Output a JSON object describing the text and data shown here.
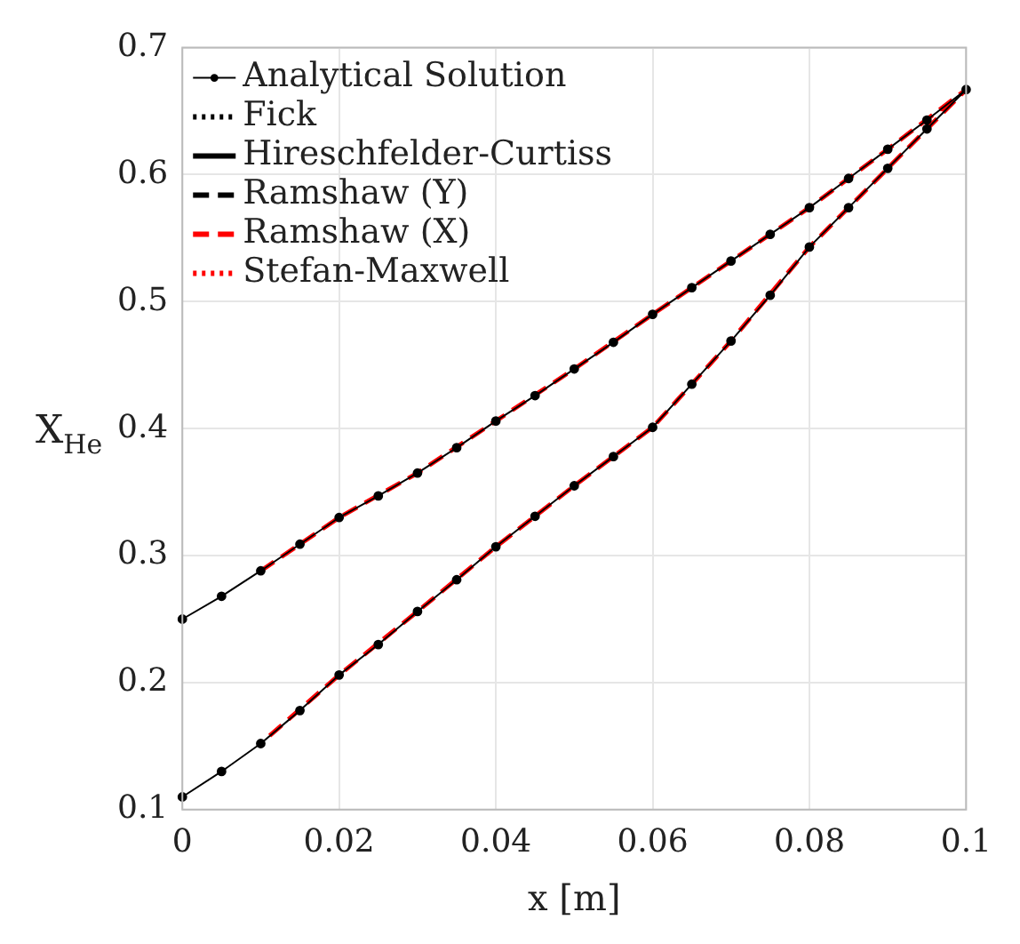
{
  "chart_data": {
    "type": "line",
    "xlabel": "x [m]",
    "ylabel": "X$_{He}$",
    "xlim": [
      0,
      0.1
    ],
    "ylim": [
      0.1,
      0.7
    ],
    "xticks": [
      0,
      0.02,
      0.04,
      0.06,
      0.08,
      0.1
    ],
    "yticks": [
      0.1,
      0.2,
      0.3,
      0.4,
      0.5,
      0.6,
      0.7
    ],
    "grid": true,
    "legend": "top left",
    "series": [
      {
        "name": "Fick",
        "color": "#000000",
        "line_style": "dotted"
      },
      {
        "name": "Hireschfelder-Curtiss",
        "color": "#000000",
        "line_style": "solid"
      },
      {
        "name": "Ramshaw (Y)",
        "color": "#000000",
        "line_style": "dashed"
      },
      {
        "name": "Ramshaw (X)",
        "color": "#ff0000",
        "line_style": "dashed",
        "x": [
          0.01,
          0.02,
          0.03,
          0.04,
          0.05,
          0.06,
          0.07,
          0.08,
          0.09,
          0.1,
          0.09,
          0.08,
          0.07,
          0.06,
          0.05,
          0.04,
          0.03,
          0.02,
          0.01
        ],
        "values": [
          0.288,
          0.33,
          0.365,
          0.406,
          0.447,
          0.49,
          0.532,
          0.574,
          0.62,
          0.667,
          0.605,
          0.543,
          0.469,
          0.401,
          0.355,
          0.307,
          0.256,
          0.206,
          0.152
        ]
      },
      {
        "name": "Stefan-Maxwell",
        "color": "#ff0000",
        "line_style": "dotted"
      },
      {
        "name": "Analytical Solution",
        "color": "#000000",
        "line_style": "solid",
        "marker": "circle",
        "x": [
          0,
          0.005,
          0.01,
          0.015,
          0.02,
          0.025,
          0.03,
          0.035,
          0.04,
          0.045,
          0.05,
          0.055,
          0.06,
          0.065,
          0.07,
          0.075,
          0.08,
          0.085,
          0.09,
          0.095,
          0.1,
          0.095,
          0.09,
          0.085,
          0.08,
          0.075,
          0.07,
          0.065,
          0.06,
          0.055,
          0.05,
          0.045,
          0.04,
          0.035,
          0.03,
          0.025,
          0.02,
          0.015,
          0.01,
          0.005,
          0
        ],
        "values": [
          0.25,
          0.268,
          0.288,
          0.309,
          0.33,
          0.347,
          0.365,
          0.385,
          0.406,
          0.426,
          0.447,
          0.468,
          0.49,
          0.511,
          0.532,
          0.553,
          0.574,
          0.597,
          0.62,
          0.643,
          0.667,
          0.636,
          0.605,
          0.574,
          0.543,
          0.505,
          0.469,
          0.435,
          0.401,
          0.378,
          0.355,
          0.331,
          0.307,
          0.281,
          0.256,
          0.23,
          0.206,
          0.178,
          0.152,
          0.13,
          0.11
        ]
      }
    ]
  }
}
